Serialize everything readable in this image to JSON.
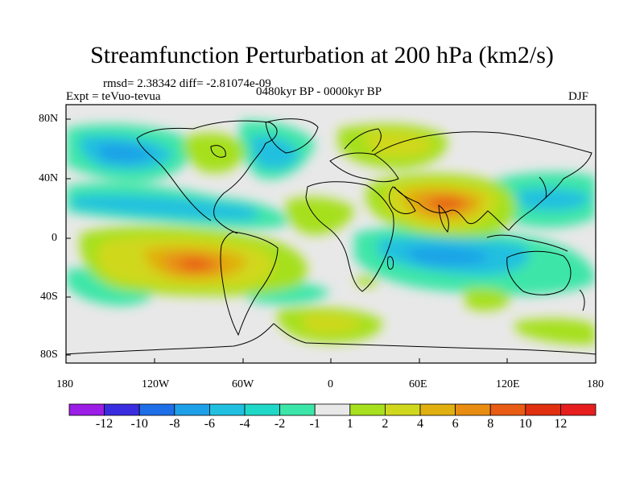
{
  "title": "Streamfunction Perturbation at 200 hPa (km2/s)",
  "stats_line": "rmsd= 2.38342 diff= -2.81074e-09",
  "experiment_label": "Expt = teVuo-tevua",
  "period_label": "0480kyr BP - 0000kyr BP",
  "season_label": "DJF",
  "y_ticks": [
    "80N",
    "40N",
    "0",
    "40S",
    "80S"
  ],
  "x_ticks": [
    "180",
    "120W",
    "60W",
    "0",
    "60E",
    "120E",
    "180"
  ],
  "colorbar": {
    "labels": [
      "-12",
      "-10",
      "-8",
      "-6",
      "-4",
      "-2",
      "-1",
      "1",
      "2",
      "4",
      "6",
      "8",
      "10",
      "12"
    ],
    "colors": [
      "#9b1de6",
      "#3a2de0",
      "#1e6ee8",
      "#1ea0e8",
      "#22c0e0",
      "#20d8c8",
      "#3ce6a8",
      "#e8e8e8",
      "#a6e01e",
      "#d0d81e",
      "#e0b010",
      "#e88c12",
      "#e85c14",
      "#e03010",
      "#e61e1e"
    ]
  },
  "field_colors": {
    "neutral": "#e8e8e8",
    "pos1": "#a6e01e",
    "pos2": "#d0d81e",
    "pos3": "#e0b010",
    "pos4": "#e88c12",
    "pos5": "#e85c14",
    "neg1": "#3ce6a8",
    "neg2": "#22c0e0",
    "neg3": "#1ea0e8",
    "coast": "#000000"
  }
}
